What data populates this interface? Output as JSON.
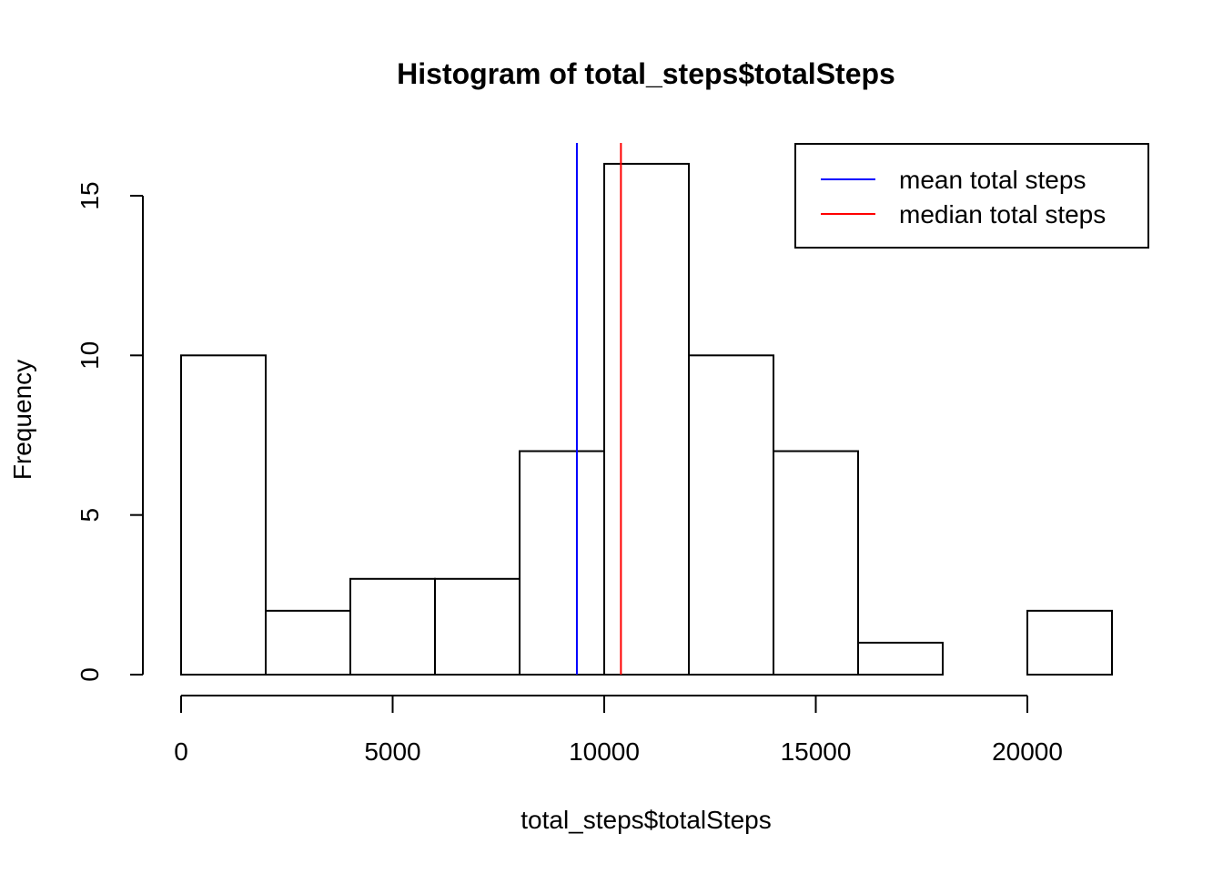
{
  "chart_data": {
    "type": "histogram",
    "title": "Histogram of total_steps$totalSteps",
    "xlabel": "total_steps$totalSteps",
    "ylabel": "Frequency",
    "xlim": [
      0,
      22000
    ],
    "ylim": [
      0,
      16
    ],
    "bins": [
      {
        "start": 0,
        "end": 2000,
        "count": 10
      },
      {
        "start": 2000,
        "end": 4000,
        "count": 2
      },
      {
        "start": 4000,
        "end": 6000,
        "count": 3
      },
      {
        "start": 6000,
        "end": 8000,
        "count": 3
      },
      {
        "start": 8000,
        "end": 10000,
        "count": 7
      },
      {
        "start": 10000,
        "end": 12000,
        "count": 16
      },
      {
        "start": 12000,
        "end": 14000,
        "count": 10
      },
      {
        "start": 14000,
        "end": 16000,
        "count": 7
      },
      {
        "start": 16000,
        "end": 18000,
        "count": 1
      },
      {
        "start": 18000,
        "end": 20000,
        "count": 0
      },
      {
        "start": 20000,
        "end": 22000,
        "count": 2
      }
    ],
    "x_ticks": [
      0,
      5000,
      10000,
      15000,
      20000
    ],
    "x_tick_labels": [
      "0",
      "5000",
      "10000",
      "15000",
      "20000"
    ],
    "y_ticks": [
      0,
      5,
      10,
      15
    ],
    "y_tick_labels": [
      "0",
      "5",
      "10",
      "15"
    ],
    "vlines": [
      {
        "name": "mean total steps",
        "x": 9354,
        "color": "#0000ff"
      },
      {
        "name": "median total steps",
        "x": 10395,
        "color": "#ff0000"
      }
    ],
    "legend": {
      "position": "top-right",
      "entries": [
        {
          "label": "mean total steps",
          "color": "#0000ff"
        },
        {
          "label": "median total steps",
          "color": "#ff0000"
        }
      ]
    },
    "grid": false
  }
}
